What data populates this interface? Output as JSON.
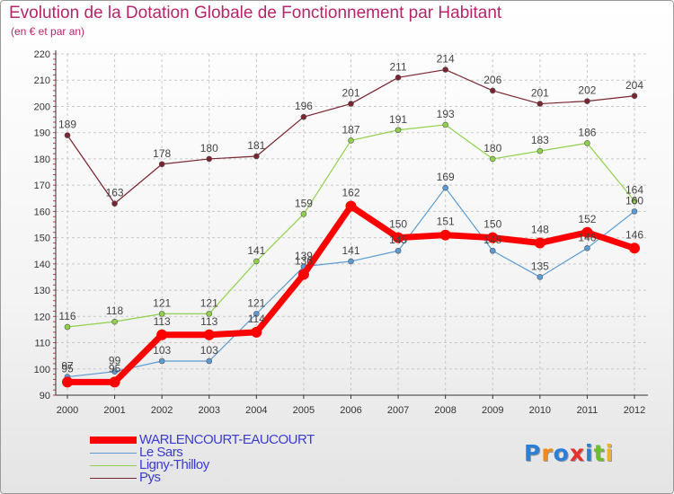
{
  "colors": {
    "title": "#b5256b",
    "legend_text": "#3b3bd4",
    "grid": "#c8c8c8",
    "axis": "#333333"
  },
  "logo": {
    "text": "Proxiti"
  },
  "chart_data": {
    "type": "line",
    "title": "Evolution de la Dotation Globale de Fonctionnement par Habitant",
    "subtitle": "(en € et par an)",
    "xlabel": "",
    "ylabel": "",
    "ylim": [
      90,
      220
    ],
    "yticks": [
      90,
      100,
      110,
      120,
      130,
      140,
      150,
      160,
      170,
      180,
      190,
      200,
      210,
      220
    ],
    "categories": [
      "2000",
      "2001",
      "2002",
      "2003",
      "2004",
      "2005",
      "2006",
      "2007",
      "2008",
      "2009",
      "2010",
      "2011",
      "2012"
    ],
    "grid": true,
    "legend_position": "bottom-left",
    "series": [
      {
        "name": "Pys",
        "color": "#7a2430",
        "values": [
          189,
          163,
          178,
          180,
          181,
          196,
          201,
          211,
          214,
          206,
          201,
          202,
          204
        ],
        "labels": [
          "189",
          "163",
          "178",
          "180",
          "181",
          "196",
          "201",
          "211",
          "214",
          "206",
          "201",
          "202",
          "204"
        ]
      },
      {
        "name": "Ligny-Thilloy",
        "color": "#8fd14a",
        "values": [
          116,
          118,
          121,
          121,
          141,
          159,
          187,
          191,
          193,
          180,
          183,
          186,
          164
        ],
        "labels": [
          "116",
          "118",
          "121",
          "121",
          "141",
          "159",
          "187",
          "191",
          "193",
          "180",
          "183",
          "186",
          "164"
        ]
      },
      {
        "name": "Le Sars",
        "color": "#5b9bd5",
        "values": [
          97,
          99,
          103,
          103,
          121,
          139,
          141,
          145,
          169,
          145,
          135,
          146,
          160
        ],
        "labels": [
          "97",
          "99",
          "103",
          "103",
          "121",
          "139",
          "141",
          "145",
          "169",
          "145",
          "135",
          "146",
          "160"
        ]
      },
      {
        "name": "WARLENCOURT-EAUCOURT",
        "color": "#ff0000",
        "values": [
          95,
          95,
          113,
          113,
          114,
          136,
          162,
          150,
          151,
          150,
          148,
          152,
          146
        ],
        "labels": [
          "95",
          "95",
          "113",
          "113",
          "114",
          "136",
          "162",
          "150",
          "151",
          "150",
          "148",
          "152",
          "146"
        ]
      }
    ],
    "legend": [
      "WARLENCOURT-EAUCOURT",
      "Le Sars",
      "Ligny-Thilloy",
      "Pys"
    ]
  }
}
